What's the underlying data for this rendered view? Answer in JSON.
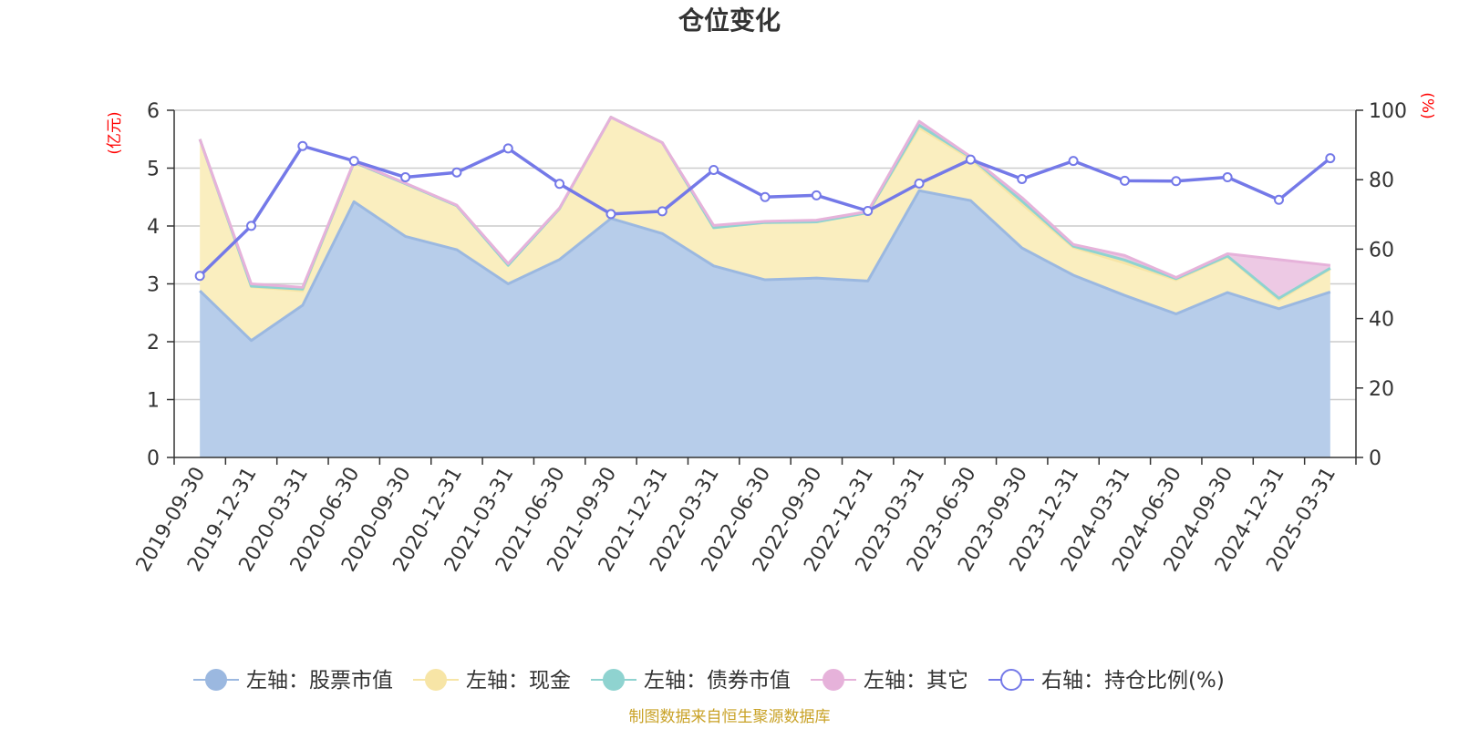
{
  "chart_data": {
    "type": "area",
    "title": "仓位变化",
    "left_unit": "(亿元)",
    "right_unit": "(%)",
    "categories": [
      "2019-09-30",
      "2019-12-31",
      "2020-03-31",
      "2020-06-30",
      "2020-09-30",
      "2020-12-31",
      "2021-03-31",
      "2021-06-30",
      "2021-09-30",
      "2021-12-31",
      "2022-03-31",
      "2022-06-30",
      "2022-09-30",
      "2022-12-31",
      "2023-03-31",
      "2023-06-30",
      "2023-09-30",
      "2023-12-31",
      "2024-03-31",
      "2024-06-30",
      "2024-09-30",
      "2024-12-31",
      "2025-03-31"
    ],
    "left_axis": {
      "min": 0,
      "max": 6,
      "ticks": [
        0,
        1,
        2,
        3,
        4,
        5,
        6
      ]
    },
    "right_axis": {
      "min": 0,
      "max": 100,
      "ticks": [
        0,
        20,
        40,
        60,
        80,
        100
      ]
    },
    "stacked_series": [
      {
        "name": "左轴：股票市值",
        "axis": "left",
        "color": "#9bb8e0",
        "fill": "#b7cdea",
        "values": [
          2.88,
          2.02,
          2.63,
          4.42,
          3.82,
          3.59,
          3.0,
          3.42,
          4.13,
          3.87,
          3.31,
          3.07,
          3.1,
          3.05,
          4.61,
          4.44,
          3.62,
          3.15,
          2.8,
          2.48,
          2.85,
          2.57,
          2.86
        ]
      },
      {
        "name": "左轴：现金",
        "axis": "left",
        "color": "#f7e5a6",
        "fill": "#faeebf",
        "values": [
          2.62,
          0.93,
          0.25,
          0.68,
          0.91,
          0.76,
          0.32,
          0.88,
          1.75,
          1.57,
          0.66,
          0.99,
          0.97,
          1.18,
          1.09,
          0.72,
          0.76,
          0.48,
          0.56,
          0.59,
          0.62,
          0.15,
          0.4
        ]
      },
      {
        "name": "左轴：债券市值",
        "axis": "left",
        "color": "#8fd3d0",
        "fill": "#c9e9e6",
        "values": [
          0,
          0.01,
          0.03,
          0,
          0,
          0,
          0,
          0,
          0,
          0,
          0,
          0,
          0,
          0,
          0.04,
          0.03,
          0.05,
          0.02,
          0.05,
          0.02,
          0.01,
          0.03,
          0.01
        ]
      },
      {
        "name": "左轴：其它",
        "axis": "left",
        "color": "#e6b2da",
        "fill": "#edc9e4",
        "values": [
          0,
          0.04,
          0.03,
          0.01,
          0.01,
          0.01,
          0.03,
          0.01,
          0,
          0,
          0.04,
          0.02,
          0.03,
          0.02,
          0.07,
          0.01,
          0.06,
          0.03,
          0.08,
          0.02,
          0.04,
          0.67,
          0.05
        ]
      }
    ],
    "line_series": [
      {
        "name": "右轴：持仓比例(%)",
        "axis": "right",
        "color": "#7479e8",
        "values": [
          52.3,
          66.7,
          89.7,
          85.4,
          80.7,
          82.1,
          89.0,
          78.8,
          70.1,
          70.9,
          82.8,
          75.0,
          75.5,
          71.0,
          78.9,
          85.8,
          80.2,
          85.4,
          79.7,
          79.6,
          80.7,
          74.2,
          86.2
        ]
      }
    ],
    "grid": true,
    "legend_position": "bottom",
    "source": "制图数据来自恒生聚源数据库"
  }
}
